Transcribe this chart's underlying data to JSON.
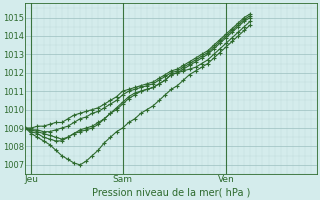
{
  "background_color": "#d4ecec",
  "grid_color_major": "#9bbfbf",
  "grid_color_minor": "#bcd9d9",
  "line_color": "#2d6a2d",
  "xlabel": "Pression niveau de la mer( hPa )",
  "ylim": [
    1006.5,
    1015.8
  ],
  "xlim": [
    0,
    48
  ],
  "yticks": [
    1007,
    1008,
    1009,
    1010,
    1011,
    1012,
    1013,
    1014,
    1015
  ],
  "xtick_labels": [
    "Jeu",
    "Sam",
    "Ven"
  ],
  "xtick_positions": [
    1,
    16,
    33
  ],
  "vline_positions": [
    1,
    16,
    33
  ],
  "series": [
    [
      1009.0,
      1009.0,
      1009.1,
      1009.1,
      1009.2,
      1009.3,
      1009.3,
      1009.5,
      1009.7,
      1009.8,
      1009.9,
      1010.0,
      1010.1,
      1010.3,
      1010.5,
      1010.7,
      1011.0,
      1011.1,
      1011.2,
      1011.3,
      1011.4,
      1011.5,
      1011.7,
      1011.9,
      1012.1,
      1012.2,
      1012.4,
      1012.6,
      1012.8,
      1013.0,
      1013.2,
      1013.5,
      1013.8,
      1014.1,
      1014.4,
      1014.7,
      1015.0,
      1015.2
    ],
    [
      1009.0,
      1008.9,
      1008.9,
      1008.8,
      1008.8,
      1008.9,
      1009.0,
      1009.1,
      1009.3,
      1009.5,
      1009.6,
      1009.8,
      1009.9,
      1010.1,
      1010.3,
      1010.5,
      1010.8,
      1011.0,
      1011.1,
      1011.2,
      1011.3,
      1011.4,
      1011.6,
      1011.8,
      1012.0,
      1012.1,
      1012.3,
      1012.5,
      1012.7,
      1012.9,
      1013.1,
      1013.4,
      1013.7,
      1014.0,
      1014.3,
      1014.6,
      1014.9,
      1015.1
    ],
    [
      1009.0,
      1008.8,
      1008.7,
      1008.5,
      1008.4,
      1008.3,
      1008.3,
      1008.5,
      1008.7,
      1008.8,
      1008.9,
      1009.0,
      1009.2,
      1009.5,
      1009.8,
      1010.1,
      1010.4,
      1010.7,
      1010.9,
      1011.0,
      1011.1,
      1011.2,
      1011.4,
      1011.6,
      1011.9,
      1012.0,
      1012.2,
      1012.4,
      1012.6,
      1012.8,
      1013.0,
      1013.3,
      1013.6,
      1013.9,
      1014.2,
      1014.5,
      1014.8,
      1015.0
    ],
    [
      1009.0,
      1008.7,
      1008.5,
      1008.3,
      1008.1,
      1007.8,
      1007.5,
      1007.3,
      1007.1,
      1007.0,
      1007.2,
      1007.5,
      1007.8,
      1008.2,
      1008.5,
      1008.8,
      1009.0,
      1009.3,
      1009.5,
      1009.8,
      1010.0,
      1010.2,
      1010.5,
      1010.8,
      1011.1,
      1011.3,
      1011.6,
      1011.9,
      1012.1,
      1012.3,
      1012.5,
      1012.8,
      1013.1,
      1013.4,
      1013.7,
      1014.0,
      1014.3,
      1014.6
    ],
    [
      1009.0,
      1008.9,
      1008.8,
      1008.7,
      1008.6,
      1008.5,
      1008.4,
      1008.5,
      1008.7,
      1008.9,
      1009.0,
      1009.1,
      1009.3,
      1009.5,
      1009.8,
      1010.0,
      1010.3,
      1010.6,
      1010.8,
      1011.0,
      1011.1,
      1011.2,
      1011.4,
      1011.6,
      1011.9,
      1012.0,
      1012.1,
      1012.2,
      1012.3,
      1012.5,
      1012.7,
      1013.0,
      1013.3,
      1013.6,
      1013.9,
      1014.2,
      1014.5,
      1014.8
    ]
  ]
}
